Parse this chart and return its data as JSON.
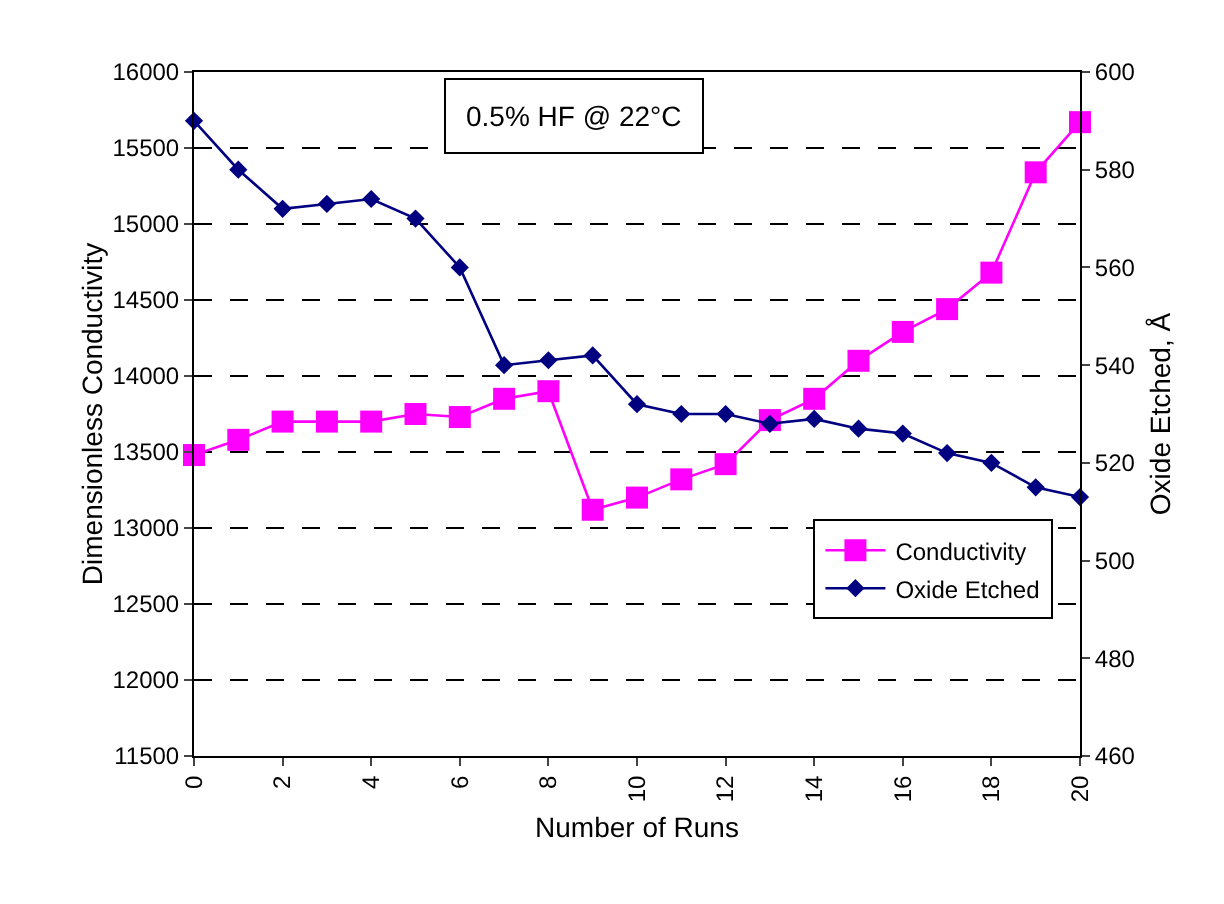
{
  "chart_data": {
    "type": "line",
    "xlabel": "Number of Runs",
    "ylabel": "Dimensionless Conductivity",
    "y2label": "Oxide Etched, Å",
    "annotations": [
      "0.5% HF @ 22°C"
    ],
    "x": [
      0,
      1,
      2,
      3,
      4,
      5,
      6,
      7,
      8,
      9,
      10,
      11,
      12,
      13,
      14,
      15,
      16,
      17,
      18,
      19,
      20
    ],
    "xlim": [
      0,
      20
    ],
    "xticks": [
      0,
      2,
      4,
      6,
      8,
      10,
      12,
      14,
      16,
      18,
      20
    ],
    "ylim": [
      11500,
      16000
    ],
    "yticks": [
      11500,
      12000,
      12500,
      13000,
      13500,
      14000,
      14500,
      15000,
      15500,
      16000
    ],
    "y2lim": [
      460,
      600
    ],
    "y2ticks": [
      460,
      480,
      500,
      520,
      540,
      560,
      580,
      600
    ],
    "grid": "y",
    "legend": "bottom right",
    "line_style": "solid",
    "series": [
      {
        "name": "Conductivity",
        "color": "#ff00ff",
        "marker": "square",
        "values": [
          13480,
          13580,
          13700,
          13700,
          13700,
          13750,
          13730,
          13850,
          13900,
          13120,
          13200,
          13320,
          13420,
          13710,
          13850,
          14100,
          14290,
          14440,
          14680,
          15340,
          15670
        ]
      },
      {
        "name": "Oxide Etched",
        "color": "#000080",
        "marker": "diamond",
        "axis": "y2",
        "values": [
          590,
          580,
          572,
          573,
          574,
          570,
          560,
          540,
          541,
          542,
          532,
          530,
          530,
          528,
          529,
          527,
          526,
          522,
          520,
          515,
          513
        ]
      }
    ]
  }
}
